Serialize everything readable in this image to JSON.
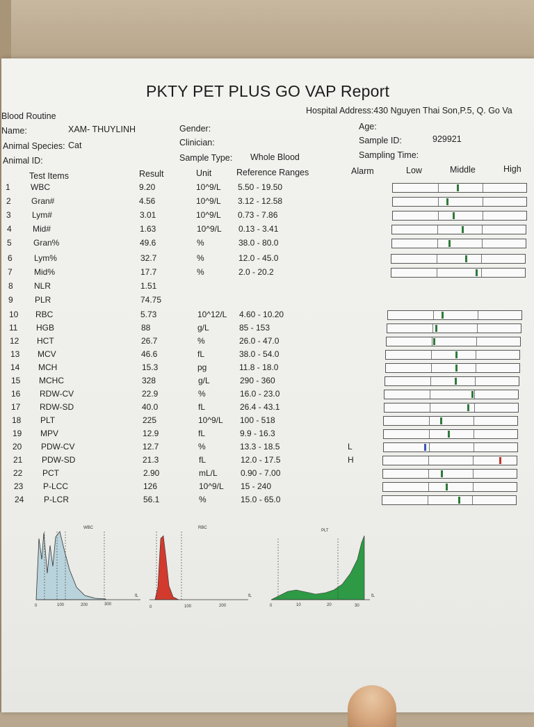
{
  "report": {
    "title": "PKTY PET PLUS GO VAP Report",
    "section": "Blood Routine",
    "address": "Hospital Address:430 Nguyen Thai Son,P.5, Q. Go Va"
  },
  "patient": {
    "name_label": "Name:",
    "name_value": "XAM- THUYLINH",
    "species_label": "Animal Species:",
    "species_value": "Cat",
    "id_label": "Animal ID:",
    "gender_label": "Gender:",
    "clinician_label": "Clinician:",
    "sample_type_label": "Sample Type:",
    "sample_type_value": "Whole Blood",
    "age_label": "Age:",
    "sample_id_label": "Sample ID:",
    "sample_id_value": "929921",
    "sampling_time_label": "Sampling Time:"
  },
  "columns": {
    "test_items": "Test Items",
    "result": "Result",
    "unit": "Unit",
    "ref": "Reference Ranges",
    "alarm": "Alarm",
    "low": "Low",
    "middle": "Middle",
    "high": "High"
  },
  "rows": [
    {
      "n": "1",
      "item": "WBC",
      "result": "9.20",
      "unit": "10^9/L",
      "ref": "5.50 - 19.50",
      "alarm": "",
      "pos": 0.48,
      "color": "#2f7a3a"
    },
    {
      "n": "2",
      "item": "Gran#",
      "result": "4.56",
      "unit": "10^9/L",
      "ref": "3.12 - 12.58",
      "alarm": "",
      "pos": 0.4,
      "color": "#2f7a3a"
    },
    {
      "n": "3",
      "item": "Lym#",
      "result": "3.01",
      "unit": "10^9/L",
      "ref": "0.73 - 7.86",
      "alarm": "",
      "pos": 0.45,
      "color": "#2f7a3a"
    },
    {
      "n": "4",
      "item": "Mid#",
      "result": "1.63",
      "unit": "10^9/L",
      "ref": "0.13 - 3.41",
      "alarm": "",
      "pos": 0.52,
      "color": "#2f7a3a"
    },
    {
      "n": "5",
      "item": "Gran%",
      "result": "49.6",
      "unit": "%",
      "ref": "38.0 - 80.0",
      "alarm": "",
      "pos": 0.42,
      "color": "#2f7a3a"
    },
    {
      "n": "6",
      "item": "Lym%",
      "result": "32.7",
      "unit": "%",
      "ref": "12.0 - 45.0",
      "alarm": "",
      "pos": 0.55,
      "color": "#2f7a3a"
    },
    {
      "n": "7",
      "item": "Mid%",
      "result": "17.7",
      "unit": "%",
      "ref": "2.0 - 20.2",
      "alarm": "",
      "pos": 0.63,
      "color": "#2f7a3a"
    },
    {
      "n": "8",
      "item": "NLR",
      "result": "1.51",
      "unit": "",
      "ref": "",
      "alarm": "",
      "pos": null,
      "color": ""
    },
    {
      "n": "9",
      "item": "PLR",
      "result": "74.75",
      "unit": "",
      "ref": "",
      "alarm": "",
      "pos": null,
      "color": ""
    },
    {
      "n": "10",
      "item": "RBC",
      "result": "5.73",
      "unit": "10^12/L",
      "ref": "4.60 - 10.20",
      "alarm": "",
      "pos": 0.4,
      "color": "#2f7a3a"
    },
    {
      "n": "11",
      "item": "HGB",
      "result": "88",
      "unit": "g/L",
      "ref": "85 - 153",
      "alarm": "",
      "pos": 0.36,
      "color": "#2f7a3a"
    },
    {
      "n": "12",
      "item": "HCT",
      "result": "26.7",
      "unit": "%",
      "ref": "26.0 - 47.0",
      "alarm": "",
      "pos": 0.35,
      "color": "#2f7a3a"
    },
    {
      "n": "13",
      "item": "MCV",
      "result": "46.6",
      "unit": "fL",
      "ref": "38.0 - 54.0",
      "alarm": "",
      "pos": 0.52,
      "color": "#2f7a3a"
    },
    {
      "n": "14",
      "item": "MCH",
      "result": "15.3",
      "unit": "pg",
      "ref": "11.8 - 18.0",
      "alarm": "",
      "pos": 0.52,
      "color": "#2f7a3a"
    },
    {
      "n": "15",
      "item": "MCHC",
      "result": "328",
      "unit": "g/L",
      "ref": "290 - 360",
      "alarm": "",
      "pos": 0.52,
      "color": "#2f7a3a"
    },
    {
      "n": "16",
      "item": "RDW-CV",
      "result": "22.9",
      "unit": "%",
      "ref": "16.0 - 23.0",
      "alarm": "",
      "pos": 0.65,
      "color": "#2f7a3a"
    },
    {
      "n": "17",
      "item": "RDW-SD",
      "result": "40.0",
      "unit": "fL",
      "ref": "26.4 - 43.1",
      "alarm": "",
      "pos": 0.62,
      "color": "#2f7a3a"
    },
    {
      "n": "18",
      "item": "PLT",
      "result": "225",
      "unit": "10^9/L",
      "ref": "100 - 518",
      "alarm": "",
      "pos": 0.42,
      "color": "#2f7a3a"
    },
    {
      "n": "19",
      "item": "MPV",
      "result": "12.9",
      "unit": "fL",
      "ref": "9.9 - 16.3",
      "alarm": "",
      "pos": 0.48,
      "color": "#2f7a3a"
    },
    {
      "n": "20",
      "item": "PDW-CV",
      "result": "12.7",
      "unit": "%",
      "ref": "13.3 - 18.5",
      "alarm": "L",
      "pos": 0.3,
      "color": "#3a56b8"
    },
    {
      "n": "21",
      "item": "PDW-SD",
      "result": "21.3",
      "unit": "fL",
      "ref": "12.0 - 17.5",
      "alarm": "H",
      "pos": 0.87,
      "color": "#c0392b"
    },
    {
      "n": "22",
      "item": "PCT",
      "result": "2.90",
      "unit": "mL/L",
      "ref": "0.90 - 7.00",
      "alarm": "",
      "pos": 0.43,
      "color": "#2f7a3a"
    },
    {
      "n": "23",
      "item": "P-LCC",
      "result": "126",
      "unit": "10^9/L",
      "ref": "15 - 240",
      "alarm": "",
      "pos": 0.47,
      "color": "#2f7a3a"
    },
    {
      "n": "24",
      "item": "P-LCR",
      "result": "56.1",
      "unit": "%",
      "ref": "15.0 - 65.0",
      "alarm": "",
      "pos": 0.57,
      "color": "#2f7a3a"
    }
  ],
  "histograms": [
    {
      "name": "wbc",
      "title": "WBC",
      "ticks": [
        "0",
        "100",
        "200",
        "300"
      ],
      "unit": "fL",
      "color": "#b9d3dc"
    },
    {
      "name": "rbc",
      "title": "RBC",
      "ticks": [
        "0",
        "100",
        "200"
      ],
      "unit": "fL",
      "color": "#d23a2e"
    },
    {
      "name": "plt",
      "title": "PLT",
      "ticks": [
        "0",
        "10",
        "20",
        "30"
      ],
      "unit": "fL",
      "color": "#2e9a45"
    }
  ]
}
